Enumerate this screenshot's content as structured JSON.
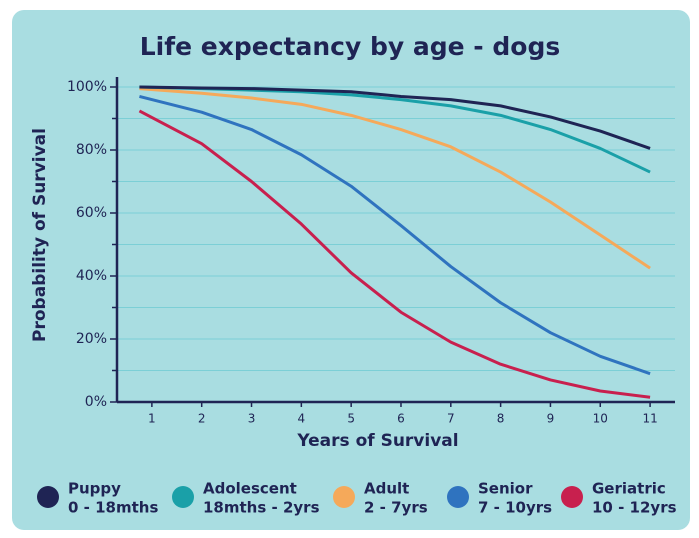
{
  "chart_data": {
    "type": "line",
    "title": "Life expectancy by age - dogs",
    "xlabel": "Years of Survival",
    "ylabel": "Probability of Survival",
    "x": [
      0.75,
      2,
      3,
      4,
      5,
      6,
      7,
      8,
      9,
      10,
      11
    ],
    "xlim": [
      0.3,
      11.5
    ],
    "xticks": [
      1,
      2,
      3,
      4,
      5,
      6,
      7,
      8,
      9,
      10,
      11
    ],
    "ylim": [
      0,
      100
    ],
    "yticks": [
      {
        "value": 0,
        "label": "0%"
      },
      {
        "value": 20,
        "label": "20%"
      },
      {
        "value": 40,
        "label": "40%"
      },
      {
        "value": 60,
        "label": "60%"
      },
      {
        "value": 80,
        "label": "80%"
      },
      {
        "value": 100,
        "label": "100%"
      }
    ],
    "yminor": [
      10,
      30,
      50,
      70,
      90
    ],
    "grid": true,
    "legend": "bottom",
    "series": [
      {
        "name": "Puppy",
        "range": "0 - 18mths",
        "color": "#1f2454",
        "values": [
          100,
          99.7,
          99.5,
          99,
          98.5,
          97,
          96,
          94,
          90.5,
          86,
          80.5
        ]
      },
      {
        "name": "Adolescent",
        "range": "18mths - 2yrs",
        "color": "#1aa0a8",
        "values": [
          100,
          99.5,
          99,
          98.5,
          97.5,
          96,
          94,
          91,
          86.5,
          80.5,
          73
        ]
      },
      {
        "name": "Adult",
        "range": "2 - 7yrs",
        "color": "#f5a95a",
        "values": [
          99.5,
          98,
          96.5,
          94.5,
          91,
          86.5,
          81,
          73,
          63.5,
          53,
          42.5
        ]
      },
      {
        "name": "Senior",
        "range": "7 - 10yrs",
        "color": "#2f73bf",
        "values": [
          97,
          92,
          86.5,
          78.5,
          68.5,
          56,
          43,
          31.5,
          22,
          14.5,
          9
        ]
      },
      {
        "name": "Geriatric",
        "range": "10 - 12yrs",
        "color": "#c8204e",
        "values": [
          92.4,
          82,
          70,
          56.5,
          41,
          28.5,
          19,
          12,
          7,
          3.5,
          1.5
        ]
      }
    ]
  }
}
